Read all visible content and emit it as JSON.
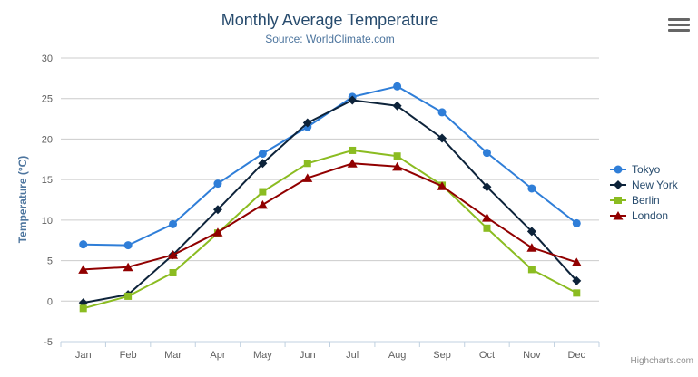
{
  "header": {
    "title": "Monthly Average Temperature",
    "subtitle": "Source: WorldClimate.com"
  },
  "toolbar": {
    "export_menu_icon": "hamburger-menu-icon"
  },
  "credits": {
    "label": "Highcharts.com"
  },
  "theme": {
    "title_color": "#274b6d",
    "subtitle_color": "#4d759e",
    "axis_title_color": "#4d759e",
    "axis_label_color": "#606060",
    "grid_color": "#cccccc",
    "axis_line_color": "#c0d0e0",
    "legend_text_color": "#274b6d",
    "credits_color": "#909090",
    "menu_icon_color": "#666666",
    "background": "#ffffff"
  },
  "chart_data": {
    "type": "line",
    "title": "Monthly Average Temperature",
    "subtitle": "Source: WorldClimate.com",
    "xlabel": "",
    "ylabel": "Temperature (°C)",
    "categories": [
      "Jan",
      "Feb",
      "Mar",
      "Apr",
      "May",
      "Jun",
      "Jul",
      "Aug",
      "Sep",
      "Oct",
      "Nov",
      "Dec"
    ],
    "ylim": [
      -5,
      30
    ],
    "ytick_interval": 5,
    "grid": "horizontal-only",
    "legend_position": "right-middle",
    "series": [
      {
        "name": "Tokyo",
        "color": "#2f7ed8",
        "marker": "circle",
        "values": [
          7.0,
          6.9,
          9.5,
          14.5,
          18.2,
          21.5,
          25.2,
          26.5,
          23.3,
          18.3,
          13.9,
          9.6
        ]
      },
      {
        "name": "New York",
        "color": "#0d233a",
        "marker": "diamond",
        "values": [
          -0.2,
          0.8,
          5.7,
          11.3,
          17.0,
          22.0,
          24.8,
          24.1,
          20.1,
          14.1,
          8.6,
          2.5
        ]
      },
      {
        "name": "Berlin",
        "color": "#8bbc21",
        "marker": "square",
        "values": [
          -0.9,
          0.6,
          3.5,
          8.4,
          13.5,
          17.0,
          18.6,
          17.9,
          14.3,
          9.0,
          3.9,
          1.0
        ]
      },
      {
        "name": "London",
        "color": "#910000",
        "marker": "triangle",
        "values": [
          3.9,
          4.2,
          5.7,
          8.5,
          11.9,
          15.2,
          17.0,
          16.6,
          14.2,
          10.3,
          6.6,
          4.8
        ]
      }
    ]
  }
}
